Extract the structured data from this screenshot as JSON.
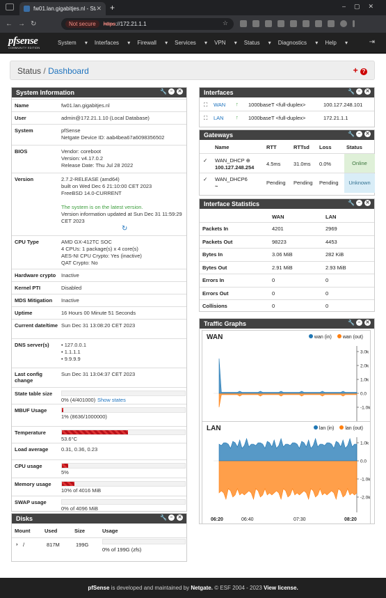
{
  "browser": {
    "tab_title": "fw01.lan.gigabitjes.nl - Stat",
    "not_secure": "Not secure",
    "url_scheme": "https",
    "url_rest": "://172.21.1.1"
  },
  "nav": {
    "menu": [
      "System",
      "Interfaces",
      "Firewall",
      "Services",
      "VPN",
      "Status",
      "Diagnostics",
      "Help"
    ],
    "logo": "pfsense",
    "logo_sub": "COMMUNITY EDITION"
  },
  "breadcrumb": {
    "status": "Status",
    "sep": "/",
    "dashboard": "Dashboard"
  },
  "system_info": {
    "title": "System Information",
    "rows": [
      {
        "label": "Name",
        "value": "fw01.lan.gigabitjes.nl"
      },
      {
        "label": "User",
        "value": "admin@172.21.1.10 (Local Database)"
      },
      {
        "label": "System",
        "value": "pfSense\nNetgate Device ID: aab4bea67a6098356502"
      },
      {
        "label": "BIOS",
        "value": "Vendor: coreboot\nVersion: v4.17.0.2\nRelease Date: Thu Jul 28 2022"
      },
      {
        "label": "Version",
        "value": "2.7.2-RELEASE (amd64)\nbuilt on Wed Dec 6 21:10:00 CET 2023\nFreeBSD 14.0-CURRENT"
      },
      {
        "label": "CPU Type",
        "value": "AMD GX-412TC SOC\n4 CPUs: 1 package(s) x 4 core(s)\nAES-NI CPU Crypto: Yes (inactive)\nQAT Crypto: No"
      },
      {
        "label": "Hardware crypto",
        "value": "Inactive"
      },
      {
        "label": "Kernel PTI",
        "value": "Disabled"
      },
      {
        "label": "MDS Mitigation",
        "value": "Inactive"
      },
      {
        "label": "Uptime",
        "value": "16 Hours 00 Minute 51 Seconds"
      },
      {
        "label": "Current date/time",
        "value": "Sun Dec 31 13:08:20 CET 2023"
      },
      {
        "label": "DNS server(s)",
        "value": "• 127.0.0.1\n• 1.1.1.1\n• 9.9.9.9"
      },
      {
        "label": "Last config change",
        "value": "Sun Dec 31 13:04:37 CET 2023"
      },
      {
        "label": "State table size",
        "value": "0% (4/401000)"
      },
      {
        "label": "MBUF Usage",
        "value": "1% (8636/1000000)"
      },
      {
        "label": "Temperature",
        "value": "53.6°C"
      },
      {
        "label": "Load average",
        "value": "0.31, 0.36, 0.23"
      },
      {
        "label": "CPU usage",
        "value": "5%"
      },
      {
        "label": "Memory usage",
        "value": "10% of 4016 MiB"
      },
      {
        "label": "SWAP usage",
        "value": "0% of 4096 MiB"
      }
    ],
    "latest_msg": "The system is on the latest version.",
    "update_msg": "Version information updated at Sun Dec 31 11:59:29 CET 2023",
    "show_states": "Show states",
    "temperature_pct": 53.6,
    "cpu_pct": 5,
    "memory_pct": 10,
    "mbuf_pct": 1
  },
  "disks": {
    "title": "Disks",
    "headers": [
      "Mount",
      "Used",
      "Size",
      "Usage"
    ],
    "rows": [
      {
        "mount": "/",
        "used": "817M",
        "size": "199G",
        "usage": "0% of 199G (zfs)"
      }
    ]
  },
  "interfaces": {
    "title": "Interfaces",
    "rows": [
      {
        "name": "WAN",
        "media": "1000baseT <full-duplex>",
        "ip": "100.127.248.101"
      },
      {
        "name": "LAN",
        "media": "1000baseT <full-duplex>",
        "ip": "172.21.1.1"
      }
    ]
  },
  "gateways": {
    "title": "Gateways",
    "headers": [
      "Name",
      "RTT",
      "RTTsd",
      "Loss",
      "Status"
    ],
    "rows": [
      {
        "name": "WAN_DHCP",
        "sub": "100.127.248.254",
        "rtt": "4.5ms",
        "rttsd": "31.0ms",
        "loss": "0.0%",
        "status": "Online"
      },
      {
        "name": "WAN_DHCP6",
        "sub": "~",
        "rtt": "Pending",
        "rttsd": "Pending",
        "loss": "Pending",
        "status": "Unknown"
      }
    ]
  },
  "iface_stats": {
    "title": "Interface Statistics",
    "headers": [
      "WAN",
      "LAN"
    ],
    "rows": [
      {
        "label": "Packets In",
        "wan": "4201",
        "lan": "2969"
      },
      {
        "label": "Packets Out",
        "wan": "98223",
        "lan": "4453"
      },
      {
        "label": "Bytes In",
        "wan": "3.06 MiB",
        "lan": "282 KiB"
      },
      {
        "label": "Bytes Out",
        "wan": "2.91 MiB",
        "lan": "2.93 MiB"
      },
      {
        "label": "Errors In",
        "wan": "0",
        "lan": "0"
      },
      {
        "label": "Errors Out",
        "wan": "0",
        "lan": "0"
      },
      {
        "label": "Collisions",
        "wan": "0",
        "lan": "0"
      }
    ]
  },
  "traffic": {
    "title": "Traffic Graphs",
    "colors": {
      "in": "#1f77b4",
      "out": "#ff7f0e"
    },
    "charts": [
      {
        "name": "WAN",
        "legend_in": "wan (in)",
        "legend_out": "wan (out)",
        "yticks": [
          "3.0k",
          "2.0k",
          "1.0k",
          "0.0",
          "-1.0k"
        ],
        "xticks": [
          "06:20",
          "06:40",
          "07:30",
          "08:20"
        ]
      },
      {
        "name": "LAN",
        "legend_in": "lan (in)",
        "legend_out": "lan (out)",
        "yticks": [
          "1.0k",
          "0.0",
          "-1.0k",
          "-2.0k"
        ],
        "xticks": [
          "06:20",
          "06:40",
          "07:30",
          "08:20"
        ]
      }
    ]
  },
  "footer": {
    "pre": "pfSense",
    "mid": " is developed and maintained by ",
    "netgate": "Netgate.",
    "post": " © ESF 2004 - 2023 ",
    "license": "View license."
  }
}
